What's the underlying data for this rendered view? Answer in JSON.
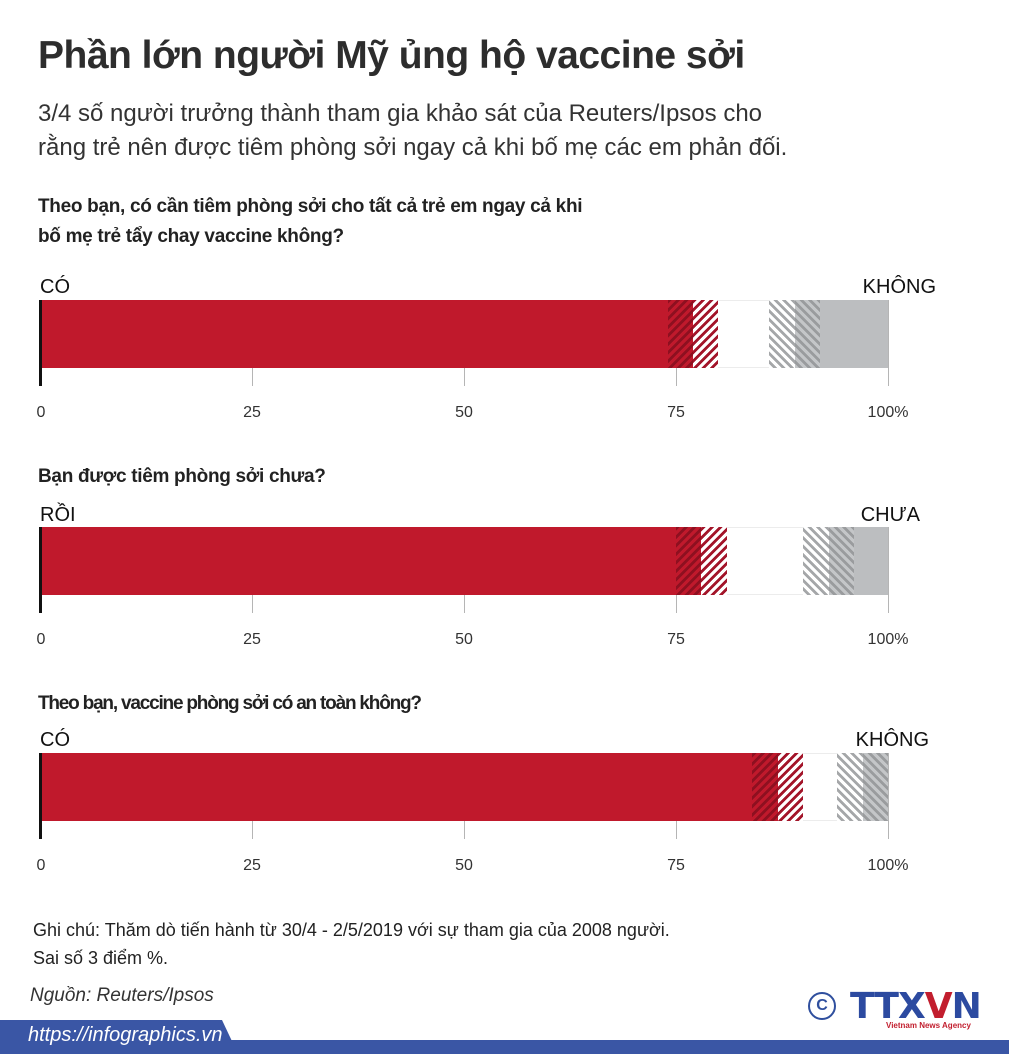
{
  "header": {
    "title": "Phần lớn người Mỹ ủng hộ vaccine sởi",
    "subtitle_line1": "3/4 số người trưởng thành tham gia khảo sát của Reuters/Ipsos cho",
    "subtitle_line2": "rằng trẻ nên được tiêm phòng sởi ngay cả khi bố mẹ các em phản đối."
  },
  "colors": {
    "yes": "#c0192c",
    "yes_hatch": "#8e1020",
    "no": "#bcbec0",
    "no_hatch": "#9a9c9e",
    "footer": "#3a56a5",
    "logo_blue": "#2c4aa0",
    "logo_red": "#c21e2e"
  },
  "axis": {
    "ticks": [
      "0",
      "25",
      "50",
      "75",
      "100%"
    ],
    "tick_values": [
      0,
      25,
      50,
      75,
      100
    ]
  },
  "charts": [
    {
      "question_line1": "Theo bạn, có cần tiêm phòng sởi cho tất cả trẻ em ngay cả khi",
      "question_line2": "bố mẹ trẻ tẩy chay vaccine không?",
      "yes_label": "CÓ",
      "no_label": "KHÔNG"
    },
    {
      "question_line1": "Bạn được tiêm phòng sởi chưa?",
      "question_line2": "",
      "yes_label": "RỒI",
      "no_label": "CHƯA"
    },
    {
      "question_line1": "Theo bạn, vaccine phòng sởi có an toàn không?",
      "question_line2": "",
      "yes_label": "CÓ",
      "no_label": "KHÔNG"
    }
  ],
  "chart_data": [
    {
      "type": "bar",
      "title": "Theo bạn, có cần tiêm phòng sởi cho tất cả trẻ em ngay cả khi bố mẹ trẻ tẩy chay vaccine không?",
      "categories": [
        "CÓ",
        "KHÔNG"
      ],
      "values": [
        77,
        11
      ],
      "margin_of_error": 3,
      "xlabel": "",
      "ylabel": "",
      "xlim": [
        0,
        100
      ],
      "x_ticks": [
        "0",
        "25",
        "50",
        "75",
        "100%"
      ],
      "orientation": "horizontal",
      "note": "Yes bar grows from left (0); No bar anchored at right (100%); hatched bands show ±3 margin"
    },
    {
      "type": "bar",
      "title": "Bạn được tiêm phòng sởi chưa?",
      "categories": [
        "RỒI",
        "CHƯA"
      ],
      "values": [
        78,
        7
      ],
      "margin_of_error": 3,
      "xlabel": "",
      "ylabel": "",
      "xlim": [
        0,
        100
      ],
      "x_ticks": [
        "0",
        "25",
        "50",
        "75",
        "100%"
      ],
      "orientation": "horizontal"
    },
    {
      "type": "bar",
      "title": "Theo bạn, vaccine phòng sởi có an toàn không?",
      "categories": [
        "CÓ",
        "KHÔNG"
      ],
      "values": [
        87,
        3
      ],
      "margin_of_error": 3,
      "xlabel": "",
      "ylabel": "",
      "xlim": [
        0,
        100
      ],
      "x_ticks": [
        "0",
        "25",
        "50",
        "75",
        "100%"
      ],
      "orientation": "horizontal"
    }
  ],
  "footer": {
    "note_line1": "Ghi chú: Thăm dò tiến hành từ 30/4 - 2/5/2019 với sự tham gia của 2008 người.",
    "note_line2": "Sai số 3 điểm %.",
    "source": "Nguồn: Reuters/Ipsos",
    "url": "https://infographics.vn",
    "copyright_symbol": "C",
    "logo_text_a": "TTX",
    "logo_text_v": "V",
    "logo_text_n": "N",
    "logo_sub": "Vietnam News Agency"
  }
}
